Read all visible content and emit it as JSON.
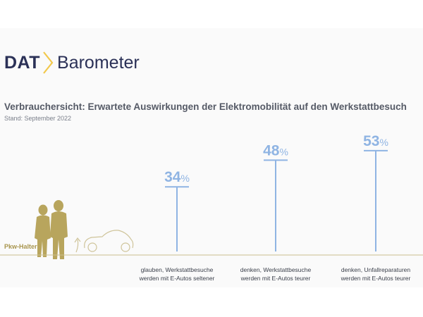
{
  "header": {
    "logo_dat": "DAT",
    "logo_barometer": "Barometer",
    "title": "Verbrauchersicht: Erwartete Auswirkungen der Elektromobilität auf den Werkstattbesuch",
    "subtitle": "Stand: September 2022"
  },
  "baseline_label": "Pkw-Halter",
  "colors": {
    "accent": "#8fb4e3",
    "brand": "#2b3157",
    "gold": "#b8a55d",
    "logo_chevron": "#f2c84b"
  },
  "chart_data": {
    "type": "bar",
    "categories": [
      "glauben, Werkstattbesuche werden mit E-Autos seltener",
      "denken, Werkstattbesuche werden mit E-Autos teurer",
      "denken, Unfallreparaturen werden mit E-Autos teurer"
    ],
    "category_lines": [
      [
        "glauben, Werkstattbesuche",
        "werden mit E-Autos seltener"
      ],
      [
        "denken, Werkstattbesuche",
        "werden mit E-Autos teurer"
      ],
      [
        "denken, Unfallreparaturen",
        "werden mit E-Autos teurer"
      ]
    ],
    "values": [
      34,
      48,
      53
    ],
    "value_suffix": "%",
    "title": "Verbrauchersicht: Erwartete Auswirkungen der Elektromobilität auf den Werkstattbesuch",
    "ylim": [
      0,
      100
    ]
  }
}
